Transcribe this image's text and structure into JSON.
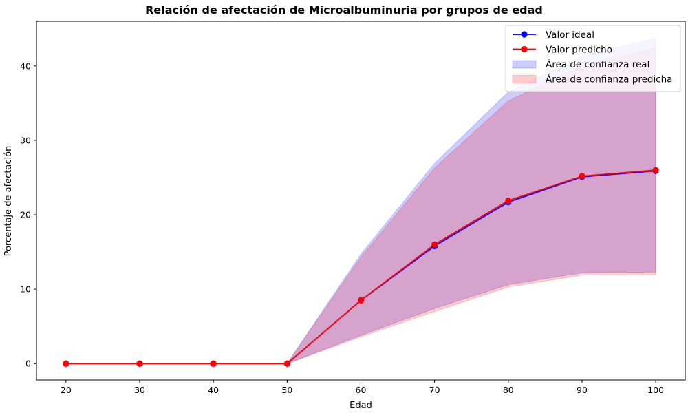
{
  "chart_data": {
    "type": "line",
    "title": "Relación de afectación de Microalbuminuria por grupos de edad",
    "xlabel": "Edad",
    "ylabel": "Porcentaje de afectación",
    "x": [
      20,
      30,
      40,
      50,
      60,
      70,
      80,
      90,
      100
    ],
    "xlim": [
      16,
      104
    ],
    "ylim": [
      -2.2,
      46
    ],
    "xticks": [
      20,
      30,
      40,
      50,
      60,
      70,
      80,
      90,
      100
    ],
    "yticks": [
      0,
      10,
      20,
      30,
      40
    ],
    "grid": false,
    "legend_position": "top-right",
    "series": [
      {
        "name": "Valor ideal",
        "color": "#0000ff",
        "marker": "circle",
        "values": [
          0,
          0,
          0,
          0,
          8.5,
          15.8,
          21.7,
          25.1,
          25.9
        ]
      },
      {
        "name": "Valor predicho",
        "color": "#ff0000",
        "marker": "circle",
        "values": [
          0,
          0,
          0,
          0,
          8.5,
          16.0,
          21.9,
          25.2,
          26.0
        ]
      }
    ],
    "bands": [
      {
        "name": "Área de confianza real",
        "color": "#0000ff",
        "opacity": 0.2,
        "x": [
          50,
          60,
          70,
          80,
          90,
          100
        ],
        "lower": [
          0,
          3.8,
          7.4,
          10.6,
          12.2,
          12.3
        ],
        "upper": [
          0,
          14.7,
          26.9,
          36.5,
          41.3,
          43.8
        ]
      },
      {
        "name": "Área de confianza predicha",
        "color": "#ff0000",
        "opacity": 0.2,
        "x": [
          50,
          60,
          70,
          80,
          90,
          100
        ],
        "lower": [
          0,
          3.6,
          7.0,
          10.3,
          11.9,
          11.9
        ],
        "upper": [
          0,
          14.3,
          26.3,
          35.3,
          40.1,
          42.4
        ]
      }
    ]
  }
}
